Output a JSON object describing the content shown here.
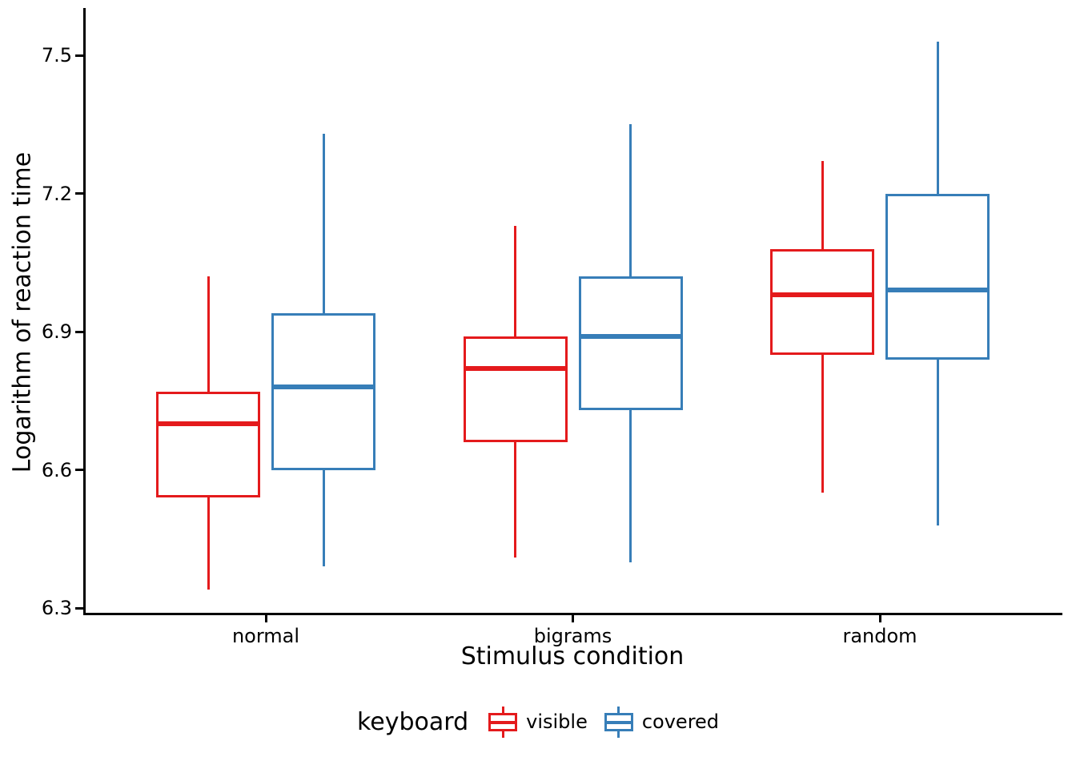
{
  "chart_data": {
    "type": "boxplot",
    "xlabel": "Stimulus condition",
    "ylabel": "Logarithm of reaction time",
    "categories": [
      "normal",
      "bigrams",
      "random"
    ],
    "y_ticks": [
      6.3,
      6.6,
      6.9,
      7.2,
      7.5
    ],
    "ylim": [
      6.28,
      7.6
    ],
    "grid": "off",
    "legend": {
      "title": "keyboard",
      "position": "bottom-center",
      "entries": [
        {
          "label": "visible",
          "color": "#E41A1C"
        },
        {
          "label": "covered",
          "color": "#377EB8"
        }
      ]
    },
    "series": [
      {
        "name": "visible",
        "color": "#E41A1C",
        "boxes": [
          {
            "category": "normal",
            "whisker_low": 6.34,
            "q1": 6.54,
            "median": 6.7,
            "q3": 6.77,
            "whisker_high": 7.02
          },
          {
            "category": "bigrams",
            "whisker_low": 6.41,
            "q1": 6.66,
            "median": 6.82,
            "q3": 6.89,
            "whisker_high": 7.13
          },
          {
            "category": "random",
            "whisker_low": 6.55,
            "q1": 6.85,
            "median": 6.98,
            "q3": 7.08,
            "whisker_high": 7.27
          }
        ]
      },
      {
        "name": "covered",
        "color": "#377EB8",
        "boxes": [
          {
            "category": "normal",
            "whisker_low": 6.39,
            "q1": 6.6,
            "median": 6.78,
            "q3": 6.94,
            "whisker_high": 7.33
          },
          {
            "category": "bigrams",
            "whisker_low": 6.4,
            "q1": 6.73,
            "median": 6.89,
            "q3": 7.02,
            "whisker_high": 7.35
          },
          {
            "category": "random",
            "whisker_low": 6.48,
            "q1": 6.84,
            "median": 6.99,
            "q3": 7.2,
            "whisker_high": 7.53
          }
        ]
      }
    ]
  }
}
